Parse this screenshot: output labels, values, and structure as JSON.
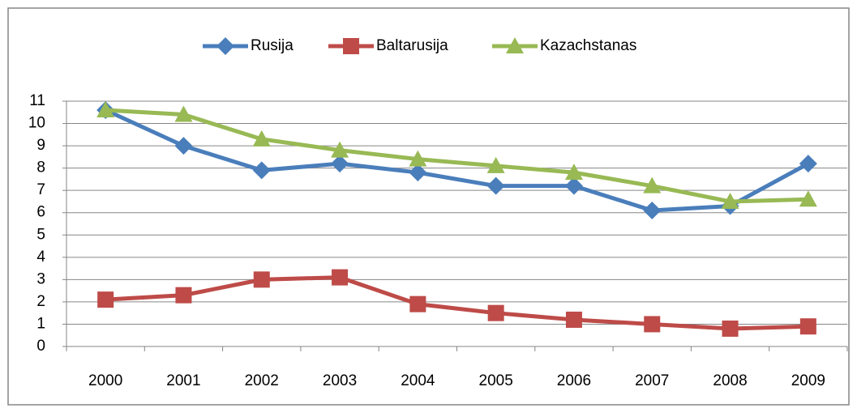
{
  "chart_data": {
    "type": "line",
    "categories": [
      "2000",
      "2001",
      "2002",
      "2003",
      "2004",
      "2005",
      "2006",
      "2007",
      "2008",
      "2009"
    ],
    "series": [
      {
        "name": "Rusija",
        "color": "#4a7ebb",
        "marker": "diamond",
        "values": [
          10.6,
          9.0,
          7.9,
          8.2,
          7.8,
          7.2,
          7.2,
          6.1,
          6.3,
          8.2
        ]
      },
      {
        "name": "Baltarusija",
        "color": "#be4b48",
        "marker": "square",
        "values": [
          2.1,
          2.3,
          3.0,
          3.1,
          1.9,
          1.5,
          1.2,
          1.0,
          0.8,
          0.9
        ]
      },
      {
        "name": "Kazachstanas",
        "color": "#98b954",
        "marker": "triangle",
        "values": [
          10.6,
          10.4,
          9.3,
          8.8,
          8.4,
          8.1,
          7.8,
          7.2,
          6.5,
          6.6
        ]
      }
    ],
    "ylim": [
      0,
      11
    ],
    "yticks": [
      0,
      1,
      2,
      3,
      4,
      5,
      6,
      7,
      8,
      9,
      10,
      11
    ],
    "grid": true,
    "legend": "top"
  }
}
